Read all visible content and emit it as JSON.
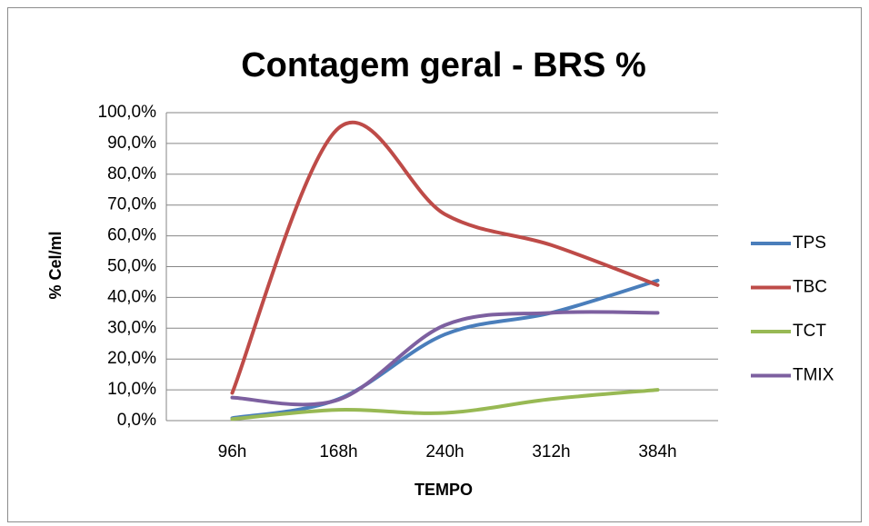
{
  "chart_data": {
    "type": "line",
    "title": "Contagem geral - BRS %",
    "x_label": "TEMPO",
    "y_label": "% Cel/ml",
    "categories": [
      "96h",
      "168h",
      "240h",
      "312h",
      "384h"
    ],
    "series": [
      {
        "name": "TPS",
        "color": "#4a7ebb",
        "values": [
          0.8,
          7,
          28,
          35,
          45.5
        ]
      },
      {
        "name": "TBC",
        "color": "#be4b48",
        "values": [
          9,
          95,
          67,
          57,
          44
        ]
      },
      {
        "name": "TCT",
        "color": "#98b954",
        "values": [
          0.5,
          3.5,
          2.5,
          7,
          10
        ]
      },
      {
        "name": "TMIX",
        "color": "#7d60a0",
        "values": [
          7.5,
          6.8,
          31,
          35,
          35
        ]
      }
    ],
    "ylim": [
      0,
      100
    ],
    "yticks": [
      {
        "value": 0,
        "label": "0,0%"
      },
      {
        "value": 10,
        "label": "10,0%"
      },
      {
        "value": 20,
        "label": "20,0%"
      },
      {
        "value": 30,
        "label": "30,0%"
      },
      {
        "value": 40,
        "label": "40,0%"
      },
      {
        "value": 50,
        "label": "50,0%"
      },
      {
        "value": 60,
        "label": "60,0%"
      },
      {
        "value": 70,
        "label": "70,0%"
      },
      {
        "value": 80,
        "label": "80,0%"
      },
      {
        "value": 90,
        "label": "90,0%"
      },
      {
        "value": 100,
        "label": "100,0%"
      }
    ],
    "grid": true,
    "smooth": true,
    "legend": "right"
  }
}
